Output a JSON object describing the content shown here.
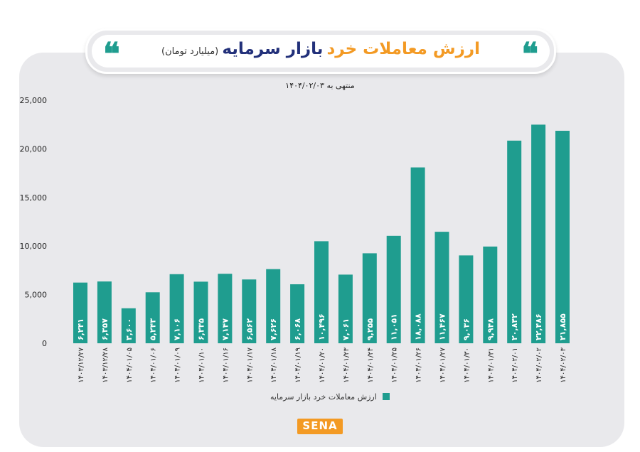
{
  "header": {
    "title_orange": "ارزش معاملات خرد",
    "title_navy": "بازار سرمایه",
    "unit": "(میلیارد تومان)",
    "quote_glyph": "❝"
  },
  "date_note": "منتهی به ۱۴۰۴/۰۲/۰۳",
  "legend_label": "ارزش معاملات خرد بازار سرمایه",
  "logo": "SENA",
  "colors": {
    "bar": "#1f9d8f",
    "accent": "#f39a24",
    "navy": "#22307a",
    "panel": "#e9e9ec"
  },
  "chart_data": {
    "type": "bar",
    "title": "ارزش معاملات خرد بازار سرمایه",
    "ylim": [
      0,
      25000
    ],
    "yticks": [
      0,
      5000,
      10000,
      15000,
      20000,
      25000
    ],
    "ytick_labels": [
      "0",
      "5,000",
      "10,000",
      "15,000",
      "20,000",
      "25,000"
    ],
    "categories": [
      "۱۴۰۳/۱۲/۲۷",
      "۱۴۰۳/۱۲/۲۸",
      "۱۴۰۴/۰۱/۰۵",
      "۱۴۰۴/۰۱/۰۶",
      "۱۴۰۴/۰۱/۰۹",
      "۱۴۰۴/۰۱/۱۰",
      "۱۴۰۴/۰۱/۱۶",
      "۱۴۰۴/۰۱/۱۷",
      "۱۴۰۴/۰۱/۱۸",
      "۱۴۰۴/۰۱/۱۹",
      "۱۴۰۴/۰۱/۲۰",
      "۱۴۰۴/۰۱/۲۳",
      "۱۴۰۴/۰۱/۲۴",
      "۱۴۰۴/۰۱/۲۵",
      "۱۴۰۴/۰۱/۲۶",
      "۱۴۰۴/۰۱/۲۷",
      "۱۴۰۴/۰۱/۳۰",
      "۱۴۰۴/۰۱/۳۱",
      "۱۴۰۴/۰۲/۰۱",
      "۱۴۰۴/۰۲/۰۲",
      "۱۴۰۴/۰۲/۰۳"
    ],
    "values": [
      6241,
      6357,
      3600,
      5243,
      7106,
      6335,
      7147,
      6562,
      7626,
      6068,
      10496,
      7061,
      9255,
      11051,
      18088,
      11467,
      9036,
      9948,
      20842,
      22486,
      21855
    ],
    "value_labels": [
      "۶,۲۴۱",
      "۶,۳۵۷",
      "۳,۶۰۰",
      "۵,۲۴۳",
      "۷,۱۰۶",
      "۶,۳۳۵",
      "۷,۱۴۷",
      "۶,۵۶۲",
      "۷,۶۲۶",
      "۶,۰۶۸",
      "۱۰,۴۹۶",
      "۷,۰۶۱",
      "۹,۲۵۵",
      "۱۱,۰۵۱",
      "۱۸,۰۸۸",
      "۱۱,۴۶۷",
      "۹,۰۳۶",
      "۹,۹۴۸",
      "۲۰,۸۴۲",
      "۲۲,۴۸۶",
      "۲۱,۸۵۵"
    ],
    "series": [
      {
        "name": "ارزش معاملات خرد بازار سرمایه"
      }
    ]
  }
}
